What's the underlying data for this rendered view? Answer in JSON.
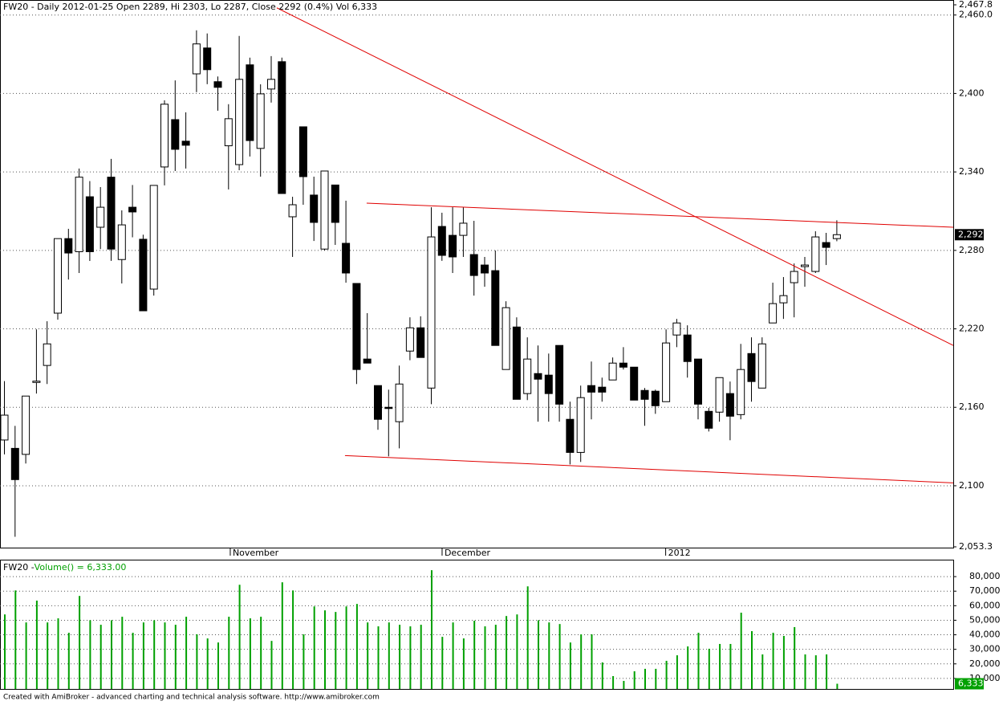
{
  "chart_data": {
    "type": "candlestick",
    "title": "FW20 - Daily 2012-01-25 Open 2289, Hi 2303, Lo 2287, Close 2292 (0.4%) Vol 6,333",
    "ylim": [
      2053.3,
      2467.8
    ],
    "yticks": [
      {
        "value": 2467.8,
        "label": "2,467.8"
      },
      {
        "value": 2460,
        "label": "2,460.0"
      },
      {
        "value": 2400,
        "label": "2,400"
      },
      {
        "value": 2340,
        "label": "2,340"
      },
      {
        "value": 2280,
        "label": "2,280"
      },
      {
        "value": 2220,
        "label": "2,220"
      },
      {
        "value": 2160,
        "label": "2,160"
      },
      {
        "value": 2100,
        "label": "2,100"
      },
      {
        "value": 2053.3,
        "label": "2,053.3"
      }
    ],
    "grid": true,
    "up_color": "#ffffff",
    "down_color": "#000000",
    "x_labels": [
      {
        "position": 21.2,
        "label": "November"
      },
      {
        "position": 41.05,
        "label": "December"
      },
      {
        "position": 62.0,
        "label": "2012"
      }
    ],
    "last_price": {
      "value": 2292,
      "label": "2,292"
    },
    "trendlines": [
      {
        "color": "#e00000",
        "x": [
          25.56,
          88.95
        ],
        "y": [
          2465.5,
          2207.3
        ]
      },
      {
        "color": "#e00000",
        "x": [
          33.98,
          88.95
        ],
        "y": [
          2316.1,
          2297.7
        ]
      },
      {
        "color": "#e00000",
        "x": [
          31.95,
          88.95
        ],
        "y": [
          2123.1,
          2102.2
        ]
      }
    ],
    "candles": [
      {
        "open": 2135,
        "high": 2180,
        "low": 2124,
        "close": 2154
      },
      {
        "open": 2128.6,
        "high": 2145.8,
        "low": 2061,
        "close": 2104.7
      },
      {
        "open": 2124,
        "high": 2168.6,
        "low": 2117,
        "close": 2168.6
      },
      {
        "open": 2179,
        "high": 2219.6,
        "low": 2170.5,
        "close": 2180
      },
      {
        "open": 2192,
        "high": 2225.8,
        "low": 2177.8,
        "close": 2208.5
      },
      {
        "open": 2232,
        "high": 2289,
        "low": 2227,
        "close": 2289
      },
      {
        "open": 2289,
        "high": 2296.5,
        "low": 2257.7,
        "close": 2278
      },
      {
        "open": 2279,
        "high": 2342.6,
        "low": 2262.7,
        "close": 2336
      },
      {
        "open": 2321,
        "high": 2333,
        "low": 2271.9,
        "close": 2279
      },
      {
        "open": 2297.7,
        "high": 2328.4,
        "low": 2281,
        "close": 2313
      },
      {
        "open": 2336,
        "high": 2350,
        "low": 2272,
        "close": 2281
      },
      {
        "open": 2273,
        "high": 2310.6,
        "low": 2254.7,
        "close": 2299.5
      },
      {
        "open": 2313,
        "high": 2330,
        "low": 2290,
        "close": 2309.4
      },
      {
        "open": 2288.5,
        "high": 2292,
        "low": 2233.8,
        "close": 2233.8
      },
      {
        "open": 2250.4,
        "high": 2329.7,
        "low": 2245.4,
        "close": 2329.7
      },
      {
        "open": 2343.8,
        "high": 2394.8,
        "low": 2329.7,
        "close": 2391.8
      },
      {
        "open": 2380,
        "high": 2410,
        "low": 2340.7,
        "close": 2357.3
      },
      {
        "open": 2363.5,
        "high": 2385.6,
        "low": 2342.6,
        "close": 2360.4
      },
      {
        "open": 2415,
        "high": 2448.3,
        "low": 2401,
        "close": 2437.9
      },
      {
        "open": 2434.8,
        "high": 2445.9,
        "low": 2407.1,
        "close": 2418.2
      },
      {
        "open": 2409,
        "high": 2413,
        "low": 2386.8,
        "close": 2404.7
      },
      {
        "open": 2360,
        "high": 2391.8,
        "low": 2326.6,
        "close": 2380.7
      },
      {
        "open": 2345.6,
        "high": 2444,
        "low": 2341.3,
        "close": 2410.8
      },
      {
        "open": 2421.9,
        "high": 2427.4,
        "low": 2351.8,
        "close": 2364
      },
      {
        "open": 2358,
        "high": 2407,
        "low": 2336.4,
        "close": 2399.7
      },
      {
        "open": 2403.4,
        "high": 2428.6,
        "low": 2393,
        "close": 2410.8
      },
      {
        "open": 2424.3,
        "high": 2427.4,
        "low": 2323.5,
        "close": 2323.5
      },
      {
        "open": 2305.7,
        "high": 2321,
        "low": 2275,
        "close": 2314.9
      },
      {
        "open": 2374.5,
        "high": 2374.5,
        "low": 2314.9,
        "close": 2336.4
      },
      {
        "open": 2322.3,
        "high": 2336.4,
        "low": 2287.2,
        "close": 2301.4
      },
      {
        "open": 2281,
        "high": 2340.7,
        "low": 2280,
        "close": 2340.7
      },
      {
        "open": 2330,
        "high": 2330,
        "low": 2284.2,
        "close": 2301.4
      },
      {
        "open": 2285.4,
        "high": 2318,
        "low": 2255.3,
        "close": 2262.7
      },
      {
        "open": 2254.7,
        "high": 2254.7,
        "low": 2177.8,
        "close": 2188.9
      },
      {
        "open": 2196.9,
        "high": 2232,
        "low": 2193.8,
        "close": 2193.8
      },
      {
        "open": 2176.6,
        "high": 2176.6,
        "low": 2142.8,
        "close": 2150.8
      },
      {
        "open": 2160,
        "high": 2173.5,
        "low": 2122.5,
        "close": 2159.5
      },
      {
        "open": 2149,
        "high": 2191.9,
        "low": 2128.6,
        "close": 2177.8
      },
      {
        "open": 2203,
        "high": 2228.8,
        "low": 2196,
        "close": 2220.8
      },
      {
        "open": 2220.8,
        "high": 2229.6,
        "low": 2198.1,
        "close": 2198.1
      },
      {
        "open": 2174.7,
        "high": 2313,
        "low": 2162.4,
        "close": 2290.3
      },
      {
        "open": 2298.3,
        "high": 2308.8,
        "low": 2272,
        "close": 2276.2
      },
      {
        "open": 2291.5,
        "high": 2313,
        "low": 2262.7,
        "close": 2275
      },
      {
        "open": 2291.5,
        "high": 2313,
        "low": 2275,
        "close": 2300.8
      },
      {
        "open": 2276.8,
        "high": 2302.6,
        "low": 2245.4,
        "close": 2260.8
      },
      {
        "open": 2268.8,
        "high": 2275,
        "low": 2252.2,
        "close": 2262.7
      },
      {
        "open": 2264.5,
        "high": 2279.9,
        "low": 2207.3,
        "close": 2207.3
      },
      {
        "open": 2188.9,
        "high": 2241.1,
        "low": 2188.9,
        "close": 2236.2
      },
      {
        "open": 2221.4,
        "high": 2228.8,
        "low": 2166.1,
        "close": 2166.1
      },
      {
        "open": 2170.5,
        "high": 2213.5,
        "low": 2165.5,
        "close": 2196.9
      },
      {
        "open": 2185.8,
        "high": 2207.3,
        "low": 2149,
        "close": 2181.5
      },
      {
        "open": 2184.6,
        "high": 2201.1,
        "low": 2149,
        "close": 2170.5
      },
      {
        "open": 2207.3,
        "high": 2207.3,
        "low": 2149,
        "close": 2162.4
      },
      {
        "open": 2150.8,
        "high": 2164.3,
        "low": 2116.3,
        "close": 2125.5
      },
      {
        "open": 2125.5,
        "high": 2176.6,
        "low": 2118.2,
        "close": 2167.4
      },
      {
        "open": 2176.6,
        "high": 2195,
        "low": 2150.8,
        "close": 2171.6
      },
      {
        "open": 2175.4,
        "high": 2182.7,
        "low": 2164.3,
        "close": 2171.6
      },
      {
        "open": 2180.9,
        "high": 2198.1,
        "low": 2180.9,
        "close": 2193.8
      },
      {
        "open": 2193.8,
        "high": 2206,
        "low": 2188.9,
        "close": 2190.7
      },
      {
        "open": 2190.7,
        "high": 2190.7,
        "low": 2165.5,
        "close": 2165.5
      },
      {
        "open": 2172.9,
        "high": 2174.7,
        "low": 2145.9,
        "close": 2166.1
      },
      {
        "open": 2172.3,
        "high": 2173.5,
        "low": 2155,
        "close": 2161.2
      },
      {
        "open": 2164.3,
        "high": 2219.6,
        "low": 2164.3,
        "close": 2209.2
      },
      {
        "open": 2215.3,
        "high": 2227.6,
        "low": 2206,
        "close": 2224.5
      },
      {
        "open": 2215.3,
        "high": 2222.7,
        "low": 2182.7,
        "close": 2195
      },
      {
        "open": 2196.9,
        "high": 2196.9,
        "low": 2150.8,
        "close": 2162.4
      },
      {
        "open": 2156.9,
        "high": 2159.5,
        "low": 2141.5,
        "close": 2144
      },
      {
        "open": 2156.3,
        "high": 2182.7,
        "low": 2149,
        "close": 2182.7
      },
      {
        "open": 2170.5,
        "high": 2179.7,
        "low": 2134.8,
        "close": 2153.2
      },
      {
        "open": 2154.4,
        "high": 2208.5,
        "low": 2150.8,
        "close": 2188.9
      },
      {
        "open": 2201.1,
        "high": 2213.5,
        "low": 2164.3,
        "close": 2179.7
      },
      {
        "open": 2174.7,
        "high": 2213.5,
        "low": 2174.7,
        "close": 2208.5
      },
      {
        "open": 2224.5,
        "high": 2255.3,
        "low": 2224.5,
        "close": 2239.3
      },
      {
        "open": 2239.9,
        "high": 2259.6,
        "low": 2227.6,
        "close": 2245.4
      },
      {
        "open": 2255.3,
        "high": 2270,
        "low": 2228.8,
        "close": 2263.9
      },
      {
        "open": 2267.6,
        "high": 2275,
        "low": 2252.2,
        "close": 2268.8
      },
      {
        "open": 2263.9,
        "high": 2294.6,
        "low": 2262.7,
        "close": 2290.3
      },
      {
        "open": 2286,
        "high": 2293.4,
        "low": 2268.8,
        "close": 2282.3
      },
      {
        "open": 2289,
        "high": 2303,
        "low": 2287,
        "close": 2292
      }
    ],
    "volume": {
      "type": "bar",
      "title_prefix": "FW20 - ",
      "title": "Volume() = 6,333.00",
      "color": "#00a000",
      "ylim": [
        0,
        90000
      ],
      "yticks": [
        {
          "value": 10000,
          "label": "10,000"
        },
        {
          "value": 20000,
          "label": "20,000"
        },
        {
          "value": 30000,
          "label": "30,000"
        },
        {
          "value": 40000,
          "label": "40,000"
        },
        {
          "value": 50000,
          "label": "50,000"
        },
        {
          "value": 60000,
          "label": "60,000"
        },
        {
          "value": 70000,
          "label": "70,000"
        },
        {
          "value": 80000,
          "label": "80,000"
        }
      ],
      "last": {
        "value": 6333,
        "label": "6,333"
      },
      "values": [
        54000,
        70500,
        48500,
        63500,
        48500,
        51300,
        41400,
        66700,
        50000,
        46900,
        50000,
        52400,
        41400,
        48500,
        50000,
        48500,
        46900,
        52400,
        40300,
        37500,
        34700,
        52400,
        74400,
        51300,
        52400,
        35800,
        76100,
        70500,
        40300,
        59500,
        56800,
        55700,
        59500,
        61200,
        48500,
        45800,
        48500,
        46900,
        45800,
        46900,
        84400,
        38600,
        48500,
        37500,
        49700,
        45800,
        46900,
        52900,
        54000,
        73300,
        50000,
        48500,
        47400,
        34700,
        40300,
        40300,
        21000,
        11600,
        8300,
        14900,
        16600,
        16600,
        22100,
        25900,
        32000,
        41400,
        30400,
        33700,
        33700,
        55200,
        42500,
        26500,
        41400,
        39200,
        45300,
        26500,
        25900,
        26500,
        6333
      ]
    },
    "footer": "Created with AmiBroker - advanced charting and technical analysis software. http://www.amibroker.com"
  }
}
